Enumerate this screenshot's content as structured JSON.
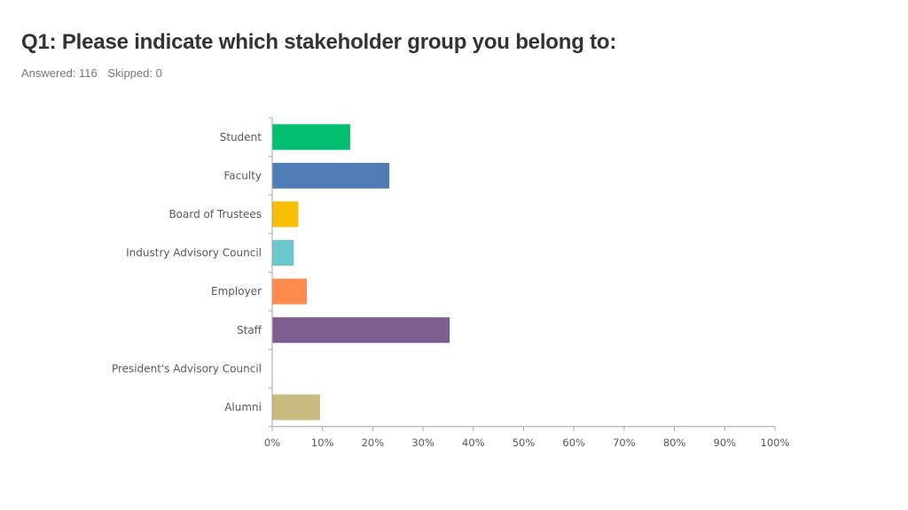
{
  "header": {
    "title": "Q1: Please indicate which stakeholder group you belong to:",
    "answered": "Answered: 116",
    "skipped": "Skipped: 0"
  },
  "chart_data": {
    "type": "bar",
    "orientation": "horizontal",
    "title": "",
    "xlabel": "",
    "ylabel": "",
    "xlim": [
      0,
      100
    ],
    "x_ticks": [
      "0%",
      "10%",
      "20%",
      "30%",
      "40%",
      "50%",
      "60%",
      "70%",
      "80%",
      "90%",
      "100%"
    ],
    "grid": false,
    "categories": [
      "Student",
      "Faculty",
      "Board of Trustees",
      "Industry Advisory Council",
      "Employer",
      "Staff",
      "President's Advisory Council",
      "Alumni"
    ],
    "values": [
      15.5,
      23.3,
      5.2,
      4.3,
      6.9,
      35.3,
      0,
      9.5
    ],
    "colors": [
      "#00bf6f",
      "#507cb6",
      "#f9be00",
      "#6bc8cd",
      "#ff8b4f",
      "#7d5e90",
      "#d25f90",
      "#c7bb7f"
    ]
  }
}
